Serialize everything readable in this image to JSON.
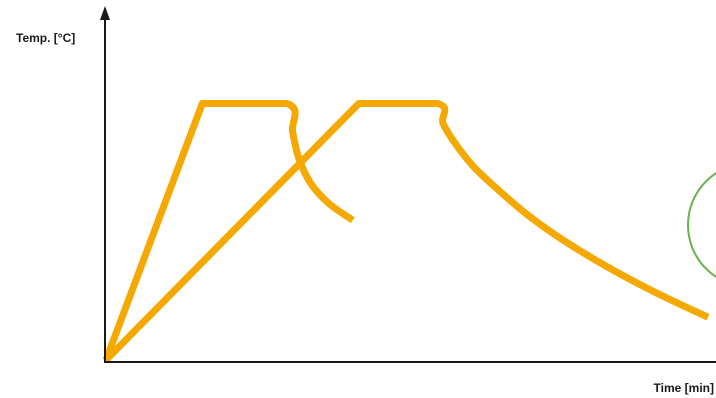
{
  "chart_data": {
    "type": "line",
    "title": "",
    "xlabel": "Time [min]",
    "ylabel": "Temp. [°C]",
    "xlim": [
      0,
      100
    ],
    "ylim": [
      0,
      100
    ],
    "grid": false,
    "legend": "none",
    "colors": {
      "curve": "#f5a800",
      "highlight": "#6ab04c",
      "axis": "#1a1a1a"
    },
    "series": [
      {
        "x": [
          0,
          16,
          30,
          31,
          32,
          34,
          37,
          41
        ],
        "y": [
          0,
          90,
          90,
          80,
          71,
          62,
          55,
          49
        ]
      },
      {
        "x": [
          0,
          42,
          55,
          56,
          58,
          61,
          65,
          70,
          76,
          83,
          91,
          100
        ],
        "y": [
          0,
          90,
          90,
          83,
          76,
          68,
          60,
          51,
          42,
          33,
          24,
          15
        ]
      }
    ],
    "annotations": [
      {
        "type": "circle-outline",
        "color": "#6ab04c"
      }
    ]
  }
}
